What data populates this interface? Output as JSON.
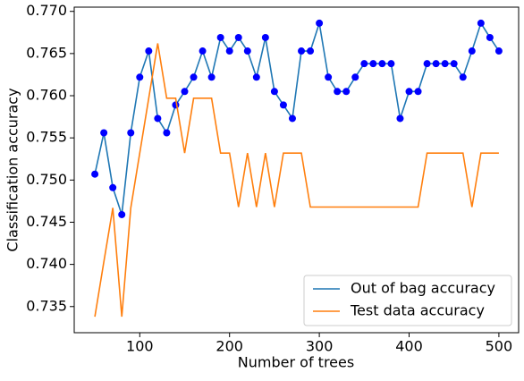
{
  "chart_data": {
    "type": "line",
    "xlabel": "Number of trees",
    "ylabel": "Classification accuracy",
    "x": [
      50,
      60,
      70,
      80,
      90,
      100,
      110,
      120,
      130,
      140,
      150,
      160,
      170,
      180,
      190,
      200,
      210,
      220,
      230,
      240,
      250,
      260,
      270,
      280,
      290,
      300,
      310,
      320,
      330,
      340,
      350,
      360,
      370,
      380,
      390,
      400,
      410,
      420,
      430,
      440,
      450,
      460,
      470,
      480,
      490,
      500
    ],
    "series": [
      {
        "name": "Out of bag accuracy",
        "color": "#1f77b4",
        "marker_color": "#0000ff",
        "values": [
          0.7507,
          0.7556,
          0.7491,
          0.7459,
          0.7556,
          0.7622,
          0.7653,
          0.7573,
          0.7556,
          0.7589,
          0.7605,
          0.7622,
          0.7653,
          0.7622,
          0.7669,
          0.7653,
          0.7669,
          0.7653,
          0.7622,
          0.7669,
          0.7605,
          0.7589,
          0.7573,
          0.7653,
          0.7653,
          0.7686,
          0.7622,
          0.7605,
          0.7605,
          0.7622,
          0.7638,
          0.7638,
          0.7638,
          0.7638,
          0.7573,
          0.7605,
          0.7605,
          0.7638,
          0.7638,
          0.7638,
          0.7638,
          0.7622,
          0.7653,
          0.7686,
          0.7669,
          0.7653
        ]
      },
      {
        "name": "Test data accuracy",
        "color": "#ff7f0e",
        "values": [
          0.7338,
          0.7403,
          0.7467,
          0.7338,
          0.7467,
          0.7532,
          0.7597,
          0.7662,
          0.7597,
          0.7597,
          0.7532,
          0.7597,
          0.7597,
          0.7597,
          0.7532,
          0.7532,
          0.7468,
          0.7532,
          0.7468,
          0.7532,
          0.7468,
          0.7532,
          0.7532,
          0.7532,
          0.7468,
          0.7468,
          0.7468,
          0.7468,
          0.7468,
          0.7468,
          0.7468,
          0.7468,
          0.7468,
          0.7468,
          0.7468,
          0.7468,
          0.7468,
          0.7532,
          0.7532,
          0.7532,
          0.7532,
          0.7532,
          0.7468,
          0.7532,
          0.7532,
          0.7532
        ]
      }
    ],
    "xlim": [
      27,
      522
    ],
    "xticks": [
      100,
      200,
      300,
      400,
      500
    ],
    "ylim": [
      0.7319,
      0.7705
    ],
    "yticks": [
      0.735,
      {
        "value": 0.74,
        "label": "0.740"
      },
      0.745,
      {
        "value": 0.75,
        "label": "0.750"
      },
      0.755,
      {
        "value": 0.76,
        "label": "0.760"
      },
      0.765,
      {
        "value": 0.77,
        "label": "0.770"
      }
    ],
    "legend": "lower right"
  }
}
